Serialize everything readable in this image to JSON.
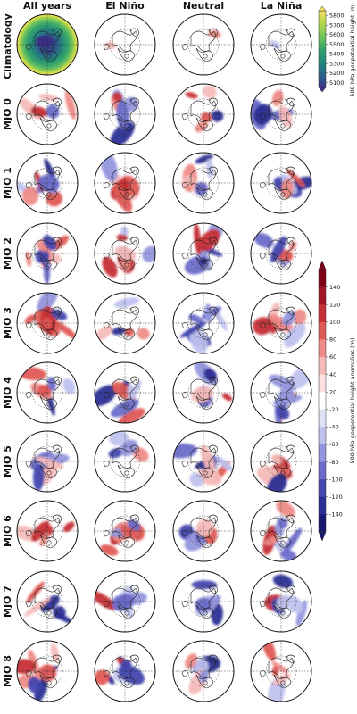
{
  "figure": {
    "columns": [
      "All years",
      "El Niño",
      "Neutral",
      "La Niña"
    ],
    "rows": [
      "Climatology",
      "MJO 0",
      "MJO 1",
      "MJO 2",
      "MJO 3",
      "MJO 4",
      "MJO 5",
      "MJO 6",
      "MJO 7",
      "MJO 8"
    ],
    "climatology_colorbar": {
      "title": "500 hPa geopotential height (m)",
      "ticks": [
        "5800",
        "5700",
        "5600",
        "5500",
        "5400",
        "5300",
        "5200",
        "5100"
      ],
      "colors": [
        "#f3e160",
        "#bcd84a",
        "#6cc25c",
        "#36a46c",
        "#238b7c",
        "#257186",
        "#2f548c",
        "#3a2f82"
      ]
    },
    "anomaly_colorbar": {
      "title": "500 hPa geopotential height anomalies (m)",
      "ticks": [
        "140",
        "120",
        "100",
        "80",
        "60",
        "40",
        "20",
        "-20",
        "-40",
        "-60",
        "-80",
        "-100",
        "-120",
        "-140"
      ],
      "colors": [
        "#7f0015",
        "#a31424",
        "#c63035",
        "#df5a55",
        "#ee8b86",
        "#f6bbb8",
        "#fbe1e0",
        "#ffffff",
        "#dfe1f6",
        "#bfc2ee",
        "#9396dd",
        "#6a6cc8",
        "#4447b0",
        "#2b2e94",
        "#17196f"
      ]
    }
  }
}
